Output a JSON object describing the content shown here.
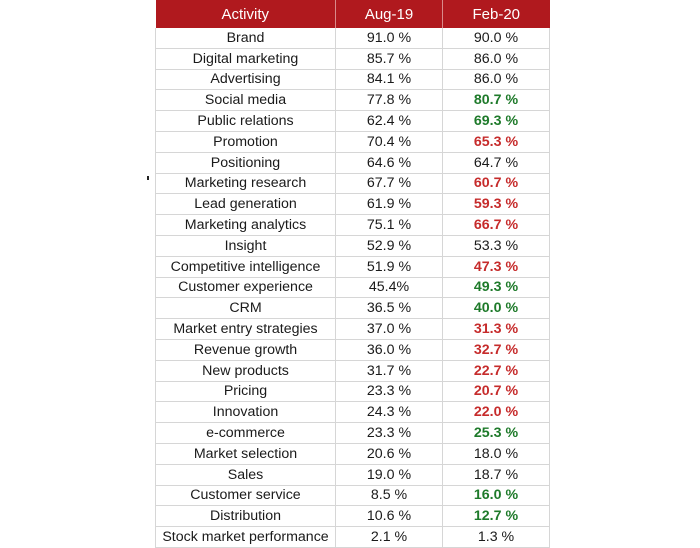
{
  "colors": {
    "header_bg": "#b0191e",
    "increase": "#1e7a2a",
    "decrease": "#c62b2b"
  },
  "chart_data": {
    "type": "table",
    "columns": [
      "Activity",
      "Aug-19",
      "Feb-20"
    ],
    "rows": [
      {
        "activity": "Brand",
        "aug19": "91.0 %",
        "feb20": "90.0 %",
        "change": "none"
      },
      {
        "activity": "Digital marketing",
        "aug19": "85.7 %",
        "feb20": "86.0 %",
        "change": "none"
      },
      {
        "activity": "Advertising",
        "aug19": "84.1 %",
        "feb20": "86.0 %",
        "change": "none"
      },
      {
        "activity": "Social media",
        "aug19": "77.8 %",
        "feb20": "80.7 %",
        "change": "up"
      },
      {
        "activity": "Public relations",
        "aug19": "62.4 %",
        "feb20": "69.3 %",
        "change": "up"
      },
      {
        "activity": "Promotion",
        "aug19": "70.4 %",
        "feb20": "65.3 %",
        "change": "down"
      },
      {
        "activity": "Positioning",
        "aug19": "64.6 %",
        "feb20": "64.7 %",
        "change": "none"
      },
      {
        "activity": "Marketing research",
        "aug19": "67.7 %",
        "feb20": "60.7 %",
        "change": "down"
      },
      {
        "activity": "Lead generation",
        "aug19": "61.9 %",
        "feb20": "59.3 %",
        "change": "down"
      },
      {
        "activity": "Marketing analytics",
        "aug19": "75.1 %",
        "feb20": "66.7 %",
        "change": "down"
      },
      {
        "activity": "Insight",
        "aug19": "52.9 %",
        "feb20": "53.3 %",
        "change": "none"
      },
      {
        "activity": "Competitive intelligence",
        "aug19": "51.9 %",
        "feb20": "47.3 %",
        "change": "down"
      },
      {
        "activity": "Customer experience",
        "aug19": "45.4%",
        "feb20": "49.3 %",
        "change": "up"
      },
      {
        "activity": "CRM",
        "aug19": "36.5 %",
        "feb20": "40.0 %",
        "change": "up"
      },
      {
        "activity": "Market entry strategies",
        "aug19": "37.0 %",
        "feb20": "31.3 %",
        "change": "down"
      },
      {
        "activity": "Revenue growth",
        "aug19": "36.0 %",
        "feb20": "32.7 %",
        "change": "down"
      },
      {
        "activity": "New products",
        "aug19": "31.7 %",
        "feb20": "22.7 %",
        "change": "down"
      },
      {
        "activity": "Pricing",
        "aug19": "23.3 %",
        "feb20": "20.7 %",
        "change": "down"
      },
      {
        "activity": "Innovation",
        "aug19": "24.3 %",
        "feb20": "22.0 %",
        "change": "down"
      },
      {
        "activity": "e-commerce",
        "aug19": "23.3 %",
        "feb20": "25.3 %",
        "change": "up"
      },
      {
        "activity": "Market selection",
        "aug19": "20.6 %",
        "feb20": "18.0 %",
        "change": "none"
      },
      {
        "activity": "Sales",
        "aug19": "19.0 %",
        "feb20": "18.7 %",
        "change": "none"
      },
      {
        "activity": "Customer service",
        "aug19": "8.5 %",
        "feb20": "16.0 %",
        "change": "up"
      },
      {
        "activity": "Distribution",
        "aug19": "10.6 %",
        "feb20": "12.7 %",
        "change": "up"
      },
      {
        "activity": "Stock market performance",
        "aug19": "2.1 %",
        "feb20": "1.3 %",
        "change": "none"
      }
    ]
  }
}
